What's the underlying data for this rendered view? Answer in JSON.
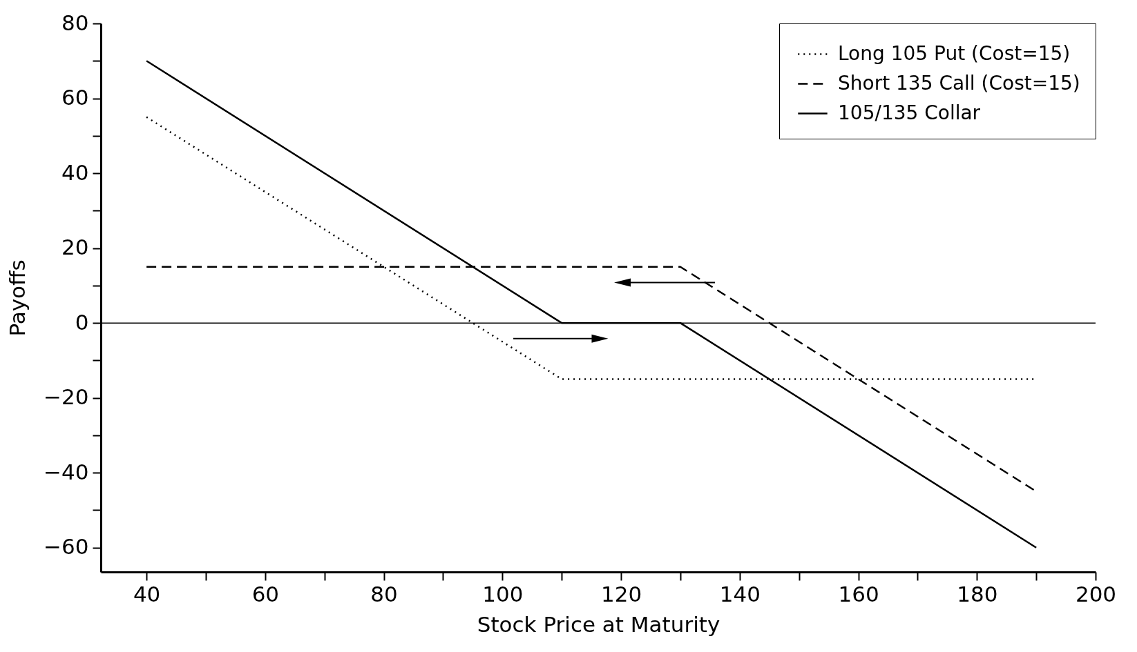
{
  "chart_data": {
    "type": "line",
    "xlabel": "Stock Price at Maturity",
    "ylabel": "Payoffs",
    "series": [
      {
        "name": "Long 105 Put (Cost=15)",
        "color": "#000000",
        "line_style": "dotted",
        "x": [
          40,
          110,
          190
        ],
        "values": [
          55,
          -15,
          -15
        ]
      },
      {
        "name": "Short 135 Call (Cost=15)",
        "color": "#000000",
        "line_style": "dashed",
        "x": [
          40,
          130,
          190
        ],
        "values": [
          15,
          15,
          -45
        ]
      },
      {
        "name": "105/135 Collar",
        "color": "#000000",
        "line_style": "solid",
        "x": [
          40,
          110,
          130,
          190
        ],
        "values": [
          70,
          0,
          0,
          -60
        ]
      }
    ],
    "xlim": [
      32.3,
      200
    ],
    "ylim": [
      -66.5,
      80
    ],
    "xticks": [
      40,
      {
        "value": 50,
        "label": null
      },
      60,
      {
        "value": 70,
        "label": null
      },
      80,
      {
        "value": 90,
        "label": null
      },
      100,
      {
        "value": 110,
        "label": null
      },
      120,
      {
        "value": 130,
        "label": null
      },
      140,
      {
        "value": 150,
        "label": null
      },
      160,
      {
        "value": 170,
        "label": null
      },
      180,
      {
        "value": 190,
        "label": null
      },
      200
    ],
    "yticks": [
      {
        "value": -60,
        "label": "−60"
      },
      {
        "value": -50,
        "label": null
      },
      {
        "value": -40,
        "label": "−40"
      },
      {
        "value": -30,
        "label": null
      },
      {
        "value": -20,
        "label": "−20"
      },
      {
        "value": -10,
        "label": null
      },
      0,
      {
        "value": 10,
        "label": null
      },
      20,
      {
        "value": 30,
        "label": null
      },
      40,
      {
        "value": 50,
        "label": null
      },
      60,
      {
        "value": 70,
        "label": null
      },
      80
    ],
    "ref_lines": [
      {
        "axis": "y",
        "value": 0,
        "color": "#000000"
      }
    ],
    "grid": false,
    "legend": "top right",
    "marker": "none"
  }
}
